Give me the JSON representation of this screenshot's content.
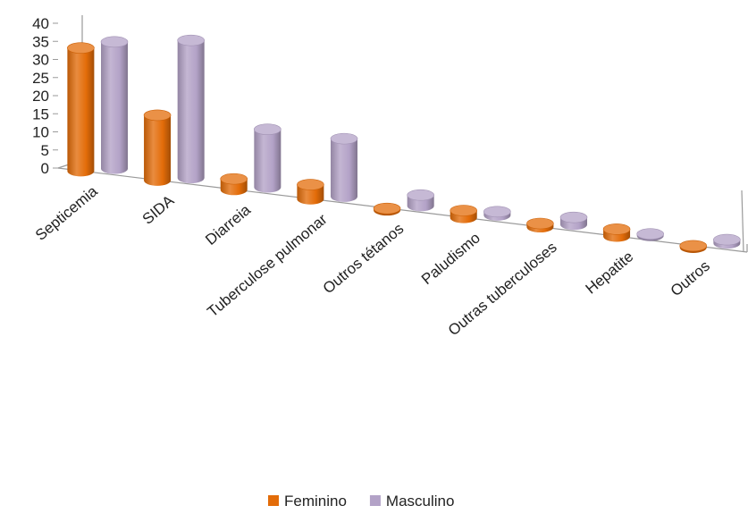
{
  "chart_data": {
    "type": "bar",
    "style": "3d-cylinder",
    "title": "",
    "xlabel": "",
    "ylabel": "",
    "ylim": [
      0,
      40
    ],
    "yticks": [
      "0",
      "5",
      "10",
      "15",
      "20",
      "25",
      "30",
      "35",
      "40"
    ],
    "categories": [
      "Septicemia",
      "SIDA",
      "Diarreia",
      "Tuberculose pulmonar",
      "Outros tétanos",
      "Paludismo",
      "Outras tuberculoses",
      "Hepatite",
      "Outros"
    ],
    "series": [
      {
        "name": "Feminino",
        "color": "#E36C09",
        "values": [
          34,
          18,
          3,
          4,
          0,
          2,
          1,
          2,
          0
        ]
      },
      {
        "name": "Masculino",
        "color": "#B3A2C7",
        "values": [
          35,
          38,
          16,
          16,
          3,
          1,
          2,
          0,
          1
        ]
      }
    ],
    "grid": false,
    "legend_position": "bottom"
  }
}
